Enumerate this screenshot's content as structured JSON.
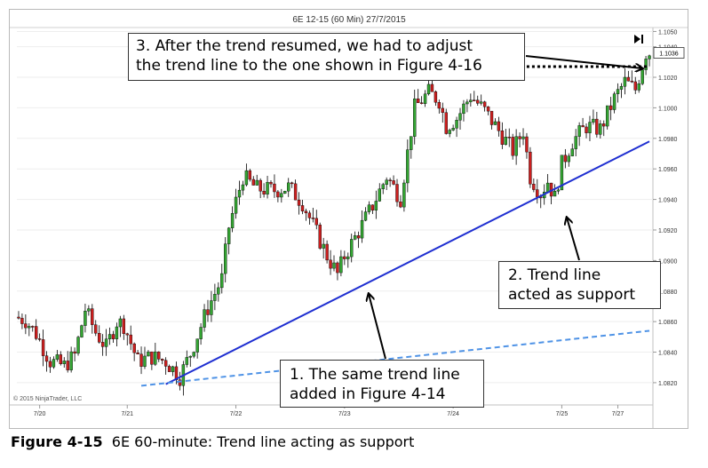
{
  "header": {
    "title": "6E 12-15 (60 Min)  27/7/2015"
  },
  "copyright": "© 2015 NinjaTrader, LLC",
  "caption": {
    "figure_label": "Figure 4-15",
    "text": "6E 60-minute: Trend line acting as support"
  },
  "callouts": [
    {
      "lines": [
        "3. After the trend resumed, we had to adjust",
        "the trend line to the one shown in Figure 4-16"
      ]
    },
    {
      "lines": [
        "2. Trend line",
        "acted as support"
      ]
    },
    {
      "lines": [
        "1. The same trend line",
        "added in Figure 4-14"
      ]
    }
  ],
  "colors": {
    "up_candle": "#33a532",
    "down_candle": "#cc1f1f",
    "trend_line": "#1f2fd1",
    "dashed_trend_line": "#4f93e6",
    "resistance_dots": "#000000",
    "price_marker_bg": "#ffffff"
  },
  "chart_data": {
    "type": "candlestick",
    "title": "6E 12-15 (60 Min)  27/7/2015",
    "x_ticks": [
      "7/20",
      "7/21",
      "7/22",
      "7/23",
      "7/24",
      "7/25",
      "7/27"
    ],
    "x_tick_bars": [
      6,
      31,
      62,
      93,
      124,
      155,
      171
    ],
    "y_ticks": [
      1.082,
      1.084,
      1.086,
      1.088,
      1.09,
      1.092,
      1.094,
      1.096,
      1.098,
      1.1,
      1.102,
      1.104,
      1.105
    ],
    "ylim": [
      1.0806,
      1.1052
    ],
    "last_price": 1.1036,
    "anchors": [
      {
        "bar": 0,
        "price": 1.0863
      },
      {
        "bar": 3,
        "price": 1.0861
      },
      {
        "bar": 6,
        "price": 1.0852
      },
      {
        "bar": 10,
        "price": 1.0834
      },
      {
        "bar": 14,
        "price": 1.0831
      },
      {
        "bar": 17,
        "price": 1.0838
      },
      {
        "bar": 20,
        "price": 1.0868
      },
      {
        "bar": 23,
        "price": 1.0853
      },
      {
        "bar": 26,
        "price": 1.0843
      },
      {
        "bar": 29,
        "price": 1.086
      },
      {
        "bar": 31,
        "price": 1.0858
      },
      {
        "bar": 35,
        "price": 1.0834
      },
      {
        "bar": 39,
        "price": 1.0837
      },
      {
        "bar": 43,
        "price": 1.0834
      },
      {
        "bar": 47,
        "price": 1.0824
      },
      {
        "bar": 50,
        "price": 1.0839
      },
      {
        "bar": 55,
        "price": 1.0869
      },
      {
        "bar": 59,
        "price": 1.0888
      },
      {
        "bar": 61,
        "price": 1.0922
      },
      {
        "bar": 65,
        "price": 1.0955
      },
      {
        "bar": 69,
        "price": 1.0947
      },
      {
        "bar": 74,
        "price": 1.0946
      },
      {
        "bar": 78,
        "price": 1.0948
      },
      {
        "bar": 82,
        "price": 1.0938
      },
      {
        "bar": 86,
        "price": 1.0918
      },
      {
        "bar": 89,
        "price": 1.0903
      },
      {
        "bar": 92,
        "price": 1.0891
      },
      {
        "bar": 94,
        "price": 1.0903
      },
      {
        "bar": 98,
        "price": 1.0919
      },
      {
        "bar": 102,
        "price": 1.0936
      },
      {
        "bar": 106,
        "price": 1.0955
      },
      {
        "bar": 110,
        "price": 1.0941
      },
      {
        "bar": 114,
        "price": 1.1
      },
      {
        "bar": 118,
        "price": 1.101
      },
      {
        "bar": 121,
        "price": 1.1005
      },
      {
        "bar": 123,
        "price": 1.0988
      },
      {
        "bar": 126,
        "price": 1.0993
      },
      {
        "bar": 130,
        "price": 1.1008
      },
      {
        "bar": 134,
        "price": 1.0998
      },
      {
        "bar": 138,
        "price": 1.0985
      },
      {
        "bar": 142,
        "price": 1.0972
      },
      {
        "bar": 145,
        "price": 1.0985
      },
      {
        "bar": 147,
        "price": 1.0955
      },
      {
        "bar": 150,
        "price": 1.0944
      },
      {
        "bar": 152,
        "price": 1.0952
      },
      {
        "bar": 154,
        "price": 1.0941
      },
      {
        "bar": 156,
        "price": 1.0963
      },
      {
        "bar": 159,
        "price": 1.0978
      },
      {
        "bar": 163,
        "price": 1.0988
      },
      {
        "bar": 167,
        "price": 1.0986
      },
      {
        "bar": 171,
        "price": 1.1006
      },
      {
        "bar": 174,
        "price": 1.1017
      },
      {
        "bar": 177,
        "price": 1.1012
      },
      {
        "bar": 180,
        "price": 1.1036
      }
    ],
    "lines": [
      {
        "id": "trend-line",
        "from": {
          "bar": 42,
          "price": 1.0819
        },
        "to": {
          "bar": 180,
          "price": 1.0978
        }
      },
      {
        "id": "dashed-trend-line",
        "from": {
          "bar": 35,
          "price": 1.0818
        },
        "to": {
          "bar": 180,
          "price": 1.0854
        }
      },
      {
        "id": "resistance-line",
        "from": {
          "bar": 110,
          "price": 1.1027
        },
        "to": {
          "bar": 180,
          "price": 1.1027
        }
      }
    ]
  }
}
